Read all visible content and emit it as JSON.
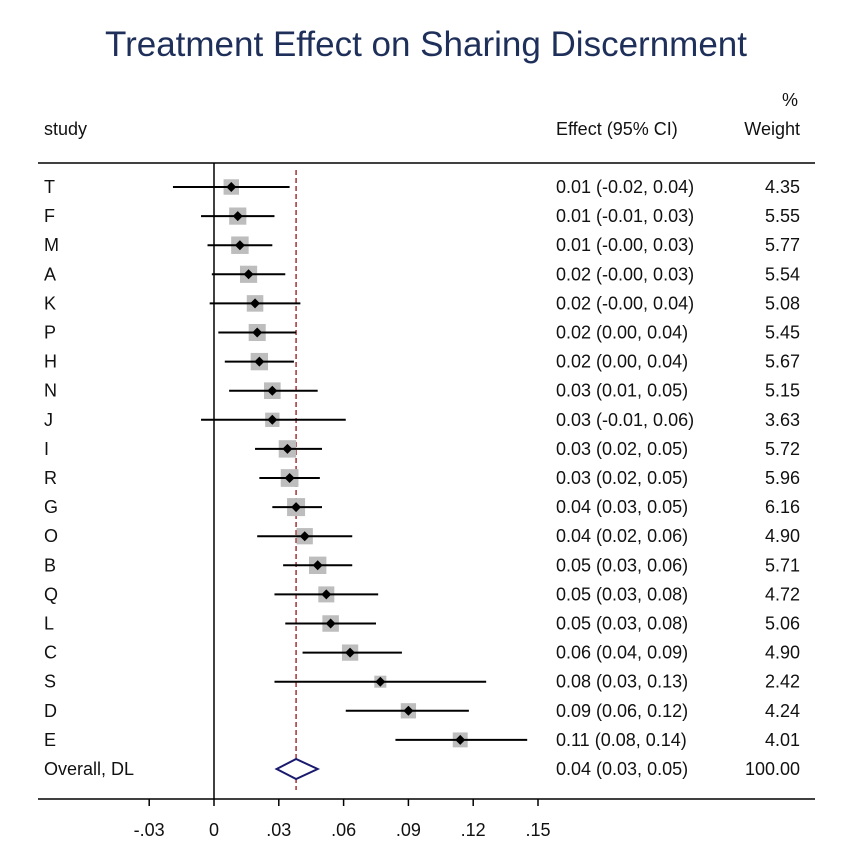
{
  "chart_data": {
    "type": "forest",
    "title": "Treatment Effect on Sharing Discernment",
    "columns": {
      "study": "study",
      "effect": "Effect (95% CI)",
      "weight_top": "%",
      "weight": "Weight"
    },
    "xlim": [
      -0.03,
      0.15
    ],
    "xticks": [
      -0.03,
      0,
      0.03,
      0.06,
      0.09,
      0.12,
      0.15
    ],
    "xtick_labels": [
      "-.03",
      "0",
      ".03",
      ".06",
      ".09",
      ".12",
      ".15"
    ],
    "null_line": 0,
    "overall_line": 0.038,
    "studies": [
      {
        "label": "T",
        "effect": 0.008,
        "lower": -0.019,
        "upper": 0.035,
        "weight": 4.35,
        "ci_text": "0.01 (-0.02, 0.04)",
        "weight_text": "4.35"
      },
      {
        "label": "F",
        "effect": 0.011,
        "lower": -0.006,
        "upper": 0.028,
        "weight": 5.55,
        "ci_text": "0.01 (-0.01, 0.03)",
        "weight_text": "5.55"
      },
      {
        "label": "M",
        "effect": 0.012,
        "lower": -0.003,
        "upper": 0.027,
        "weight": 5.77,
        "ci_text": "0.01 (-0.00, 0.03)",
        "weight_text": "5.77"
      },
      {
        "label": "A",
        "effect": 0.016,
        "lower": -0.001,
        "upper": 0.033,
        "weight": 5.54,
        "ci_text": "0.02 (-0.00, 0.03)",
        "weight_text": "5.54"
      },
      {
        "label": "K",
        "effect": 0.019,
        "lower": -0.002,
        "upper": 0.04,
        "weight": 5.08,
        "ci_text": "0.02 (-0.00, 0.04)",
        "weight_text": "5.08"
      },
      {
        "label": "P",
        "effect": 0.02,
        "lower": 0.002,
        "upper": 0.038,
        "weight": 5.45,
        "ci_text": "0.02 (0.00, 0.04)",
        "weight_text": "5.45"
      },
      {
        "label": "H",
        "effect": 0.021,
        "lower": 0.005,
        "upper": 0.037,
        "weight": 5.67,
        "ci_text": "0.02 (0.00, 0.04)",
        "weight_text": "5.67"
      },
      {
        "label": "N",
        "effect": 0.027,
        "lower": 0.007,
        "upper": 0.048,
        "weight": 5.15,
        "ci_text": "0.03 (0.01, 0.05)",
        "weight_text": "5.15"
      },
      {
        "label": "J",
        "effect": 0.027,
        "lower": -0.006,
        "upper": 0.061,
        "weight": 3.63,
        "ci_text": "0.03 (-0.01, 0.06)",
        "weight_text": "3.63"
      },
      {
        "label": "I",
        "effect": 0.034,
        "lower": 0.019,
        "upper": 0.05,
        "weight": 5.72,
        "ci_text": "0.03 (0.02, 0.05)",
        "weight_text": "5.72"
      },
      {
        "label": "R",
        "effect": 0.035,
        "lower": 0.021,
        "upper": 0.049,
        "weight": 5.96,
        "ci_text": "0.03 (0.02, 0.05)",
        "weight_text": "5.96"
      },
      {
        "label": "G",
        "effect": 0.038,
        "lower": 0.027,
        "upper": 0.05,
        "weight": 6.16,
        "ci_text": "0.04 (0.03, 0.05)",
        "weight_text": "6.16"
      },
      {
        "label": "O",
        "effect": 0.042,
        "lower": 0.02,
        "upper": 0.064,
        "weight": 4.9,
        "ci_text": "0.04 (0.02, 0.06)",
        "weight_text": "4.90"
      },
      {
        "label": "B",
        "effect": 0.048,
        "lower": 0.032,
        "upper": 0.064,
        "weight": 5.71,
        "ci_text": "0.05 (0.03, 0.06)",
        "weight_text": "5.71"
      },
      {
        "label": "Q",
        "effect": 0.052,
        "lower": 0.028,
        "upper": 0.076,
        "weight": 4.72,
        "ci_text": "0.05 (0.03, 0.08)",
        "weight_text": "4.72"
      },
      {
        "label": "L",
        "effect": 0.054,
        "lower": 0.033,
        "upper": 0.075,
        "weight": 5.06,
        "ci_text": "0.05 (0.03, 0.08)",
        "weight_text": "5.06"
      },
      {
        "label": "C",
        "effect": 0.063,
        "lower": 0.041,
        "upper": 0.087,
        "weight": 4.9,
        "ci_text": "0.06 (0.04, 0.09)",
        "weight_text": "4.90"
      },
      {
        "label": "S",
        "effect": 0.077,
        "lower": 0.028,
        "upper": 0.126,
        "weight": 2.42,
        "ci_text": "0.08 (0.03, 0.13)",
        "weight_text": "2.42"
      },
      {
        "label": "D",
        "effect": 0.09,
        "lower": 0.061,
        "upper": 0.118,
        "weight": 4.24,
        "ci_text": "0.09 (0.06, 0.12)",
        "weight_text": "4.24"
      },
      {
        "label": "E",
        "effect": 0.114,
        "lower": 0.084,
        "upper": 0.145,
        "weight": 4.01,
        "ci_text": "0.11 (0.08, 0.14)",
        "weight_text": "4.01"
      }
    ],
    "overall": {
      "label": "Overall, DL",
      "effect": 0.038,
      "lower": 0.029,
      "upper": 0.048,
      "ci_text": "0.04 (0.03, 0.05)",
      "weight_text": "100.00"
    },
    "colors": {
      "title": "#1e2f5a",
      "marker_box": "#bdbdbd",
      "point": "#000000",
      "overall_diamond": "#1a1a6e",
      "overall_line": "#a0202a"
    }
  }
}
